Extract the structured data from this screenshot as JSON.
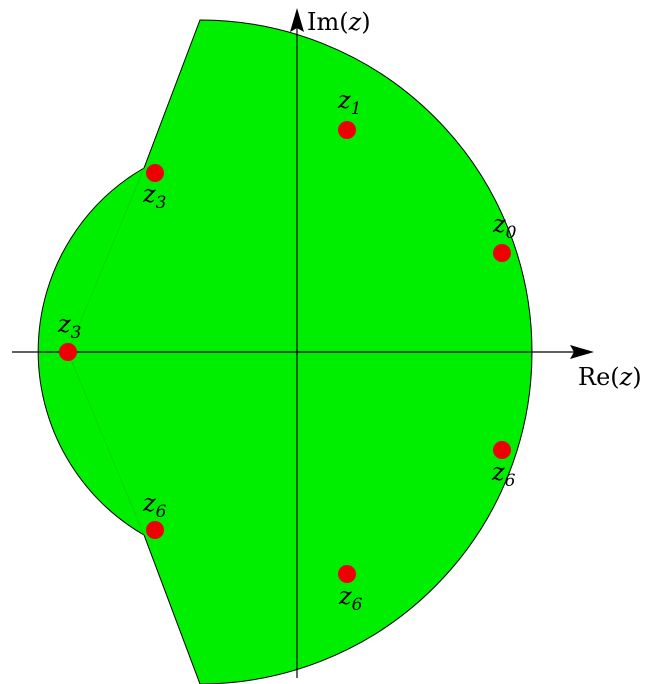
{
  "axes": {
    "x": {
      "label_prefix": "Re(",
      "label_var": "z",
      "label_suffix": ")"
    },
    "y": {
      "label_prefix": "Im(",
      "label_var": "z",
      "label_suffix": ")"
    }
  },
  "region": {
    "fill_color": "#00ee00",
    "edge_color": "#000000",
    "side_line_color": "#00cc00"
  },
  "points": {
    "color": "#ee0000",
    "list": [
      {
        "name": "z",
        "sub": "0"
      },
      {
        "name": "z",
        "sub": "1"
      },
      {
        "name": "z",
        "sub": "3"
      },
      {
        "name": "z",
        "sub": "3"
      },
      {
        "name": "z",
        "sub": "6"
      },
      {
        "name": "z",
        "sub": "6"
      },
      {
        "name": "z",
        "sub": "6"
      }
    ]
  }
}
